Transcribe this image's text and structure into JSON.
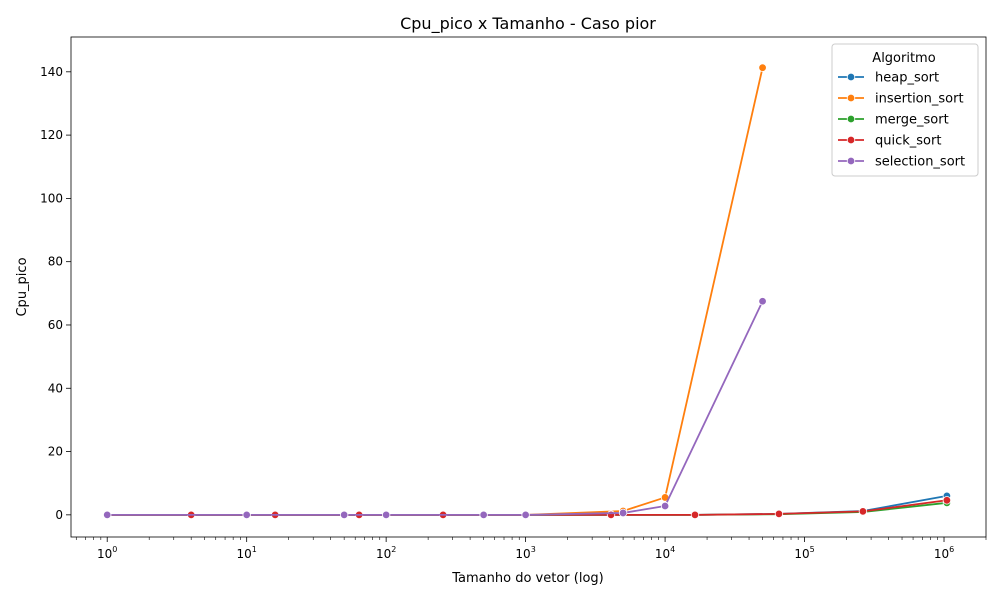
{
  "chart_data": {
    "type": "line",
    "title": "Cpu_pico x Tamanho - Caso pior",
    "xlabel": "Tamanho do vetor (log)",
    "ylabel": "Cpu_pico",
    "xscale": "log",
    "xlim": [
      0.55,
      2000000
    ],
    "ylim": [
      -7,
      151
    ],
    "x_ticks": [
      1,
      10,
      100,
      1000,
      10000,
      100000,
      1000000
    ],
    "x_tick_labels": [
      {
        "base": "10",
        "exp": "0"
      },
      {
        "base": "10",
        "exp": "1"
      },
      {
        "base": "10",
        "exp": "2"
      },
      {
        "base": "10",
        "exp": "3"
      },
      {
        "base": "10",
        "exp": "4"
      },
      {
        "base": "10",
        "exp": "5"
      },
      {
        "base": "10",
        "exp": "6"
      }
    ],
    "y_ticks": [
      0,
      20,
      40,
      60,
      80,
      100,
      120,
      140
    ],
    "grid": false,
    "legend": {
      "title": "Algoritmo",
      "position": "top-right"
    },
    "series": [
      {
        "name": "heap_sort",
        "color": "#1f77b4",
        "points": [
          [
            1,
            0
          ],
          [
            4,
            0
          ],
          [
            16,
            0
          ],
          [
            64,
            0
          ],
          [
            256,
            0
          ],
          [
            4096,
            0
          ],
          [
            16384,
            0
          ],
          [
            65536,
            0.3
          ],
          [
            262144,
            1.2
          ],
          [
            1048576,
            6
          ]
        ]
      },
      {
        "name": "insertion_sort",
        "color": "#ff7f0e",
        "points": [
          [
            1,
            0
          ],
          [
            10,
            0
          ],
          [
            50,
            0
          ],
          [
            100,
            0
          ],
          [
            500,
            0
          ],
          [
            1000,
            0
          ],
          [
            5000,
            1.2
          ],
          [
            10000,
            5.5
          ],
          [
            50000,
            141.3
          ]
        ]
      },
      {
        "name": "merge_sort",
        "color": "#2ca02c",
        "points": [
          [
            1,
            0
          ],
          [
            4,
            0
          ],
          [
            16,
            0
          ],
          [
            64,
            0
          ],
          [
            256,
            0
          ],
          [
            4096,
            0
          ],
          [
            16384,
            0
          ],
          [
            65536,
            0.2
          ],
          [
            262144,
            0.9
          ],
          [
            1048576,
            3.8
          ]
        ]
      },
      {
        "name": "quick_sort",
        "color": "#d62728",
        "points": [
          [
            1,
            0
          ],
          [
            4,
            0
          ],
          [
            16,
            0
          ],
          [
            64,
            0
          ],
          [
            256,
            0
          ],
          [
            4096,
            0
          ],
          [
            16384,
            0
          ],
          [
            65536,
            0.3
          ],
          [
            262144,
            1.1
          ],
          [
            1048576,
            4.6
          ]
        ]
      },
      {
        "name": "selection_sort",
        "color": "#9467bd",
        "points": [
          [
            1,
            0
          ],
          [
            10,
            0
          ],
          [
            50,
            0
          ],
          [
            100,
            0
          ],
          [
            500,
            0
          ],
          [
            1000,
            0
          ],
          [
            5000,
            0.6
          ],
          [
            10000,
            2.8
          ],
          [
            50000,
            67.5
          ]
        ]
      }
    ]
  }
}
